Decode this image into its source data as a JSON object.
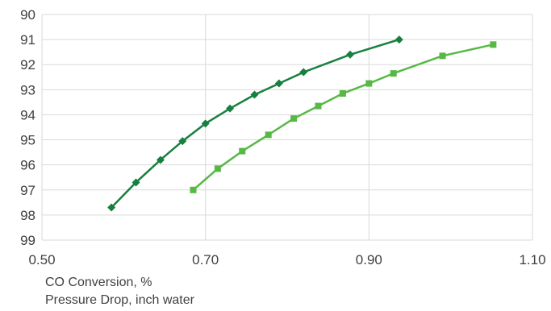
{
  "chart_data": {
    "type": "scatter",
    "title": "",
    "xlabel": "",
    "ylabel": "",
    "xlim": [
      0.5,
      1.1
    ],
    "ylim": [
      90,
      99
    ],
    "y_reversed": true,
    "grid": true,
    "legend": "none",
    "x_ticks": [
      "0.50",
      "0.70",
      "0.90",
      "1.10"
    ],
    "y_ticks": [
      "90",
      "91",
      "92",
      "93",
      "94",
      "95",
      "96",
      "97",
      "98",
      "99"
    ],
    "series": [
      {
        "marker": "diamond",
        "color": "#17803f",
        "points": [
          [
            0.585,
            97.7
          ],
          [
            0.615,
            96.7
          ],
          [
            0.645,
            95.8
          ],
          [
            0.672,
            95.05
          ],
          [
            0.7,
            94.35
          ],
          [
            0.73,
            93.75
          ],
          [
            0.76,
            93.2
          ],
          [
            0.79,
            92.75
          ],
          [
            0.82,
            92.3
          ],
          [
            0.877,
            91.6
          ],
          [
            0.937,
            91.0
          ]
        ]
      },
      {
        "marker": "square",
        "color": "#57b845",
        "points": [
          [
            0.685,
            97.0
          ],
          [
            0.715,
            96.15
          ],
          [
            0.745,
            95.45
          ],
          [
            0.777,
            94.8
          ],
          [
            0.808,
            94.15
          ],
          [
            0.838,
            93.65
          ],
          [
            0.868,
            93.15
          ],
          [
            0.9,
            92.75
          ],
          [
            0.93,
            92.35
          ],
          [
            0.99,
            91.65
          ],
          [
            1.052,
            91.2
          ]
        ]
      }
    ]
  },
  "captions": {
    "line1": "CO Conversion, %",
    "line2": "Pressure Drop, inch water"
  }
}
